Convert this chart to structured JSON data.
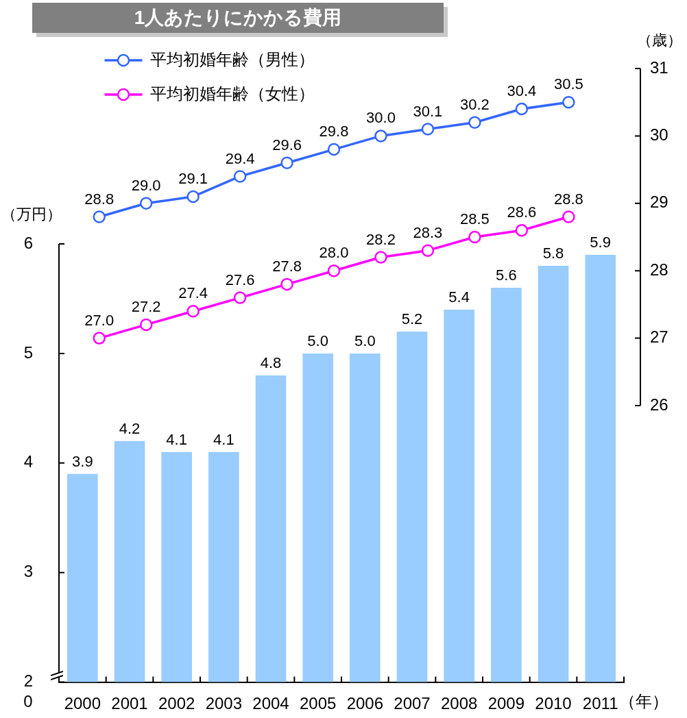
{
  "chart_data": [
    {
      "type": "bar",
      "title": "1人あたりにかかる費用",
      "ylabel": "（万円）",
      "xlabel": "（年）",
      "categories": [
        "2000",
        "2001",
        "2002",
        "2003",
        "2004",
        "2005",
        "2006",
        "2007",
        "2008",
        "2009",
        "2010",
        "2011"
      ],
      "values": [
        3.9,
        4.2,
        4.1,
        4.1,
        4.8,
        5.0,
        5.0,
        5.2,
        5.4,
        5.6,
        5.8,
        5.9
      ],
      "color": "#99ccff",
      "value_labels": [
        "3.9",
        "4.2",
        "4.1",
        "4.1",
        "4.8",
        "5.0",
        "5.0",
        "5.2",
        "5.4",
        "5.6",
        "5.8",
        "5.9"
      ],
      "ylim": [
        2,
        6
      ],
      "yticks": [
        2,
        3,
        4,
        5,
        6
      ],
      "annotations": [
        "0"
      ]
    },
    {
      "type": "line",
      "ylabel": "（歳）",
      "categories": [
        "2000",
        "2001",
        "2002",
        "2003",
        "2004",
        "2005",
        "2006",
        "2007",
        "2008",
        "2009",
        "2010",
        "2011"
      ],
      "series": [
        {
          "name": "平均初婚年齢（男性）",
          "color": "#3366ff",
          "values": [
            28.8,
            29.0,
            29.1,
            29.4,
            29.6,
            29.8,
            30.0,
            30.1,
            30.2,
            30.4,
            30.5,
            null
          ],
          "value_labels": [
            "28.8",
            "29.0",
            "29.1",
            "29.4",
            "29.6",
            "29.8",
            "30.0",
            "30.1",
            "30.2",
            "30.4",
            "30.5",
            null
          ]
        },
        {
          "name": "平均初婚年齢（女性）",
          "color": "#ff00ff",
          "values": [
            27.0,
            27.2,
            27.4,
            27.6,
            27.8,
            28.0,
            28.2,
            28.3,
            28.5,
            28.6,
            28.8,
            null
          ],
          "value_labels": [
            "27.0",
            "27.2",
            "27.4",
            "27.6",
            "27.8",
            "28.0",
            "28.2",
            "28.3",
            "28.5",
            "28.6",
            "28.8",
            null
          ]
        }
      ],
      "ylim": [
        26,
        31
      ],
      "yticks": [
        26,
        27,
        28,
        29,
        30,
        31
      ],
      "tick_labels": "y",
      "legend": "top left",
      "marker": "circle",
      "line_style": "solid"
    }
  ]
}
